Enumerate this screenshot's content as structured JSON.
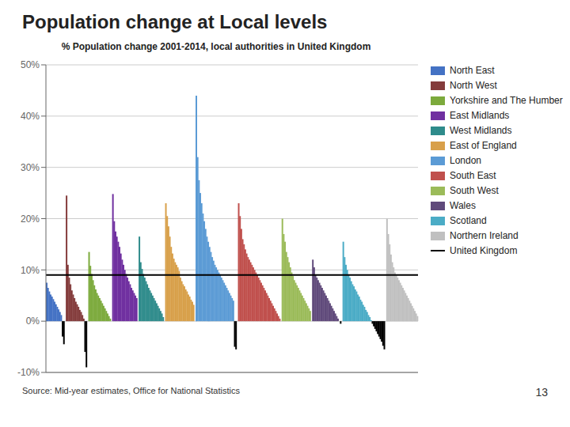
{
  "chart_data": {
    "type": "bar",
    "title": "Population change at Local levels",
    "subtitle": "% Population change 2001-2014,  local authorities in United Kingdom",
    "annotations": [
      "Source: Mid-year estimates, Office for National Statistics",
      "13"
    ],
    "ylim": [
      -10,
      50
    ],
    "yticks": [
      {
        "value": -10,
        "label": "-10%"
      },
      {
        "value": 0,
        "label": "0%"
      },
      {
        "value": 10,
        "label": "10%"
      },
      {
        "value": 20,
        "label": "20%"
      },
      {
        "value": 30,
        "label": "30%"
      },
      {
        "value": 40,
        "label": "40%"
      },
      {
        "value": 50,
        "label": "50%"
      }
    ],
    "grid": true,
    "legend": "right",
    "tick_labels": "y",
    "series": [
      {
        "name": "North East",
        "color": "#4472c4",
        "values": [
          7.5,
          6.5,
          5.8,
          5.2,
          4.8,
          4.3,
          3.8,
          3.3,
          2.8,
          2.3,
          1.8,
          1.2,
          -3.0,
          -4.5
        ],
        "colors": [
          "#4472c4",
          "#4472c4",
          "#4472c4",
          "#4472c4",
          "#4472c4",
          "#4472c4",
          "#4472c4",
          "#4472c4",
          "#4472c4",
          "#4472c4",
          "#4472c4",
          "#4472c4",
          "#000000",
          "#000000"
        ]
      },
      {
        "name": "North West",
        "color": "#843c3c",
        "values": [
          24.5,
          11.0,
          8.5,
          7.2,
          6.0,
          5.2,
          4.5,
          3.8,
          3.3,
          2.8,
          2.2,
          1.8,
          1.2,
          0.5,
          -6.0,
          -9.0
        ],
        "colors": [
          "#843c3c",
          "#843c3c",
          "#843c3c",
          "#843c3c",
          "#843c3c",
          "#843c3c",
          "#843c3c",
          "#843c3c",
          "#843c3c",
          "#843c3c",
          "#843c3c",
          "#843c3c",
          "#843c3c",
          "#843c3c",
          "#000000",
          "#000000"
        ]
      },
      {
        "name": "Yorkshire and The Humber",
        "color": "#7caa3c",
        "values": [
          13.5,
          10.8,
          9.2,
          8.0,
          7.0,
          6.2,
          5.5,
          5.0,
          4.5,
          4.0,
          3.5,
          3.0,
          2.5,
          2.0,
          1.5,
          1.0,
          0.5
        ],
        "colors": [
          "#7caa3c",
          "#7caa3c",
          "#7caa3c",
          "#7caa3c",
          "#7caa3c",
          "#7caa3c",
          "#7caa3c",
          "#7caa3c",
          "#7caa3c",
          "#7caa3c",
          "#7caa3c",
          "#7caa3c",
          "#7caa3c",
          "#7caa3c",
          "#7caa3c",
          "#7caa3c",
          "#7caa3c"
        ]
      },
      {
        "name": "East Midlands",
        "color": "#7030a0",
        "values": [
          24.8,
          19.5,
          17.5,
          16.5,
          15.5,
          14.5,
          13.2,
          12.0,
          11.0,
          10.0,
          9.2,
          8.5,
          7.8,
          7.2,
          6.5,
          6.0,
          5.5,
          5.0,
          4.5
        ],
        "colors": [
          "#7030a0",
          "#7030a0",
          "#7030a0",
          "#7030a0",
          "#7030a0",
          "#7030a0",
          "#7030a0",
          "#7030a0",
          "#7030a0",
          "#7030a0",
          "#7030a0",
          "#7030a0",
          "#7030a0",
          "#7030a0",
          "#7030a0",
          "#7030a0",
          "#7030a0",
          "#7030a0",
          "#7030a0"
        ]
      },
      {
        "name": "West Midlands",
        "color": "#2e8b8b",
        "values": [
          16.5,
          11.5,
          10.2,
          9.2,
          8.5,
          7.8,
          7.2,
          6.5,
          6.0,
          5.5,
          5.0,
          4.5,
          4.0,
          3.5,
          3.0,
          2.5,
          2.0,
          1.5,
          0.8
        ],
        "colors": [
          "#2e8b8b",
          "#2e8b8b",
          "#2e8b8b",
          "#2e8b8b",
          "#2e8b8b",
          "#2e8b8b",
          "#2e8b8b",
          "#2e8b8b",
          "#2e8b8b",
          "#2e8b8b",
          "#2e8b8b",
          "#2e8b8b",
          "#2e8b8b",
          "#2e8b8b",
          "#2e8b8b",
          "#2e8b8b",
          "#2e8b8b",
          "#2e8b8b",
          "#2e8b8b"
        ]
      },
      {
        "name": "East of England",
        "color": "#d8a04a",
        "values": [
          23.0,
          20.5,
          18.5,
          16.5,
          14.5,
          13.2,
          12.2,
          11.5,
          11.0,
          10.5,
          9.8,
          8.5,
          7.8,
          7.2,
          6.8,
          6.2,
          5.8,
          5.2,
          4.8,
          4.2,
          3.8,
          3.2
        ],
        "colors": [
          "#d8a04a",
          "#d8a04a",
          "#d8a04a",
          "#d8a04a",
          "#d8a04a",
          "#d8a04a",
          "#d8a04a",
          "#d8a04a",
          "#d8a04a",
          "#d8a04a",
          "#d8a04a",
          "#d8a04a",
          "#d8a04a",
          "#d8a04a",
          "#d8a04a",
          "#d8a04a",
          "#d8a04a",
          "#d8a04a",
          "#d8a04a",
          "#d8a04a",
          "#d8a04a",
          "#d8a04a"
        ]
      },
      {
        "name": "London",
        "color": "#5b9bd5",
        "values": [
          44.0,
          32.0,
          27.5,
          25.0,
          23.0,
          21.0,
          19.5,
          18.0,
          16.5,
          15.5,
          14.5,
          13.5,
          12.5,
          11.8,
          11.0,
          10.5,
          10.0,
          9.5,
          9.0,
          8.5,
          8.0,
          7.5,
          7.0,
          6.5,
          6.0,
          5.5,
          5.0,
          4.5,
          4.0,
          -5.0,
          -5.5
        ],
        "colors": [
          "#5b9bd5",
          "#5b9bd5",
          "#5b9bd5",
          "#5b9bd5",
          "#5b9bd5",
          "#5b9bd5",
          "#5b9bd5",
          "#5b9bd5",
          "#5b9bd5",
          "#5b9bd5",
          "#5b9bd5",
          "#5b9bd5",
          "#5b9bd5",
          "#5b9bd5",
          "#5b9bd5",
          "#5b9bd5",
          "#5b9bd5",
          "#5b9bd5",
          "#5b9bd5",
          "#5b9bd5",
          "#5b9bd5",
          "#5b9bd5",
          "#5b9bd5",
          "#5b9bd5",
          "#5b9bd5",
          "#5b9bd5",
          "#5b9bd5",
          "#5b9bd5",
          "#5b9bd5",
          "#000000",
          "#000000"
        ]
      },
      {
        "name": "South East",
        "color": "#c0504d",
        "values": [
          23.0,
          20.5,
          18.0,
          16.0,
          15.0,
          14.0,
          13.2,
          12.5,
          12.0,
          11.5,
          11.0,
          10.5,
          10.0,
          9.5,
          9.0,
          8.5,
          8.0,
          7.5,
          7.0,
          6.5,
          6.0,
          5.5,
          5.0,
          4.5,
          4.0,
          3.5,
          3.0,
          2.5,
          2.0,
          1.5,
          1.0,
          0.5
        ],
        "colors": [
          "#c0504d",
          "#c0504d",
          "#c0504d",
          "#c0504d",
          "#c0504d",
          "#c0504d",
          "#c0504d",
          "#c0504d",
          "#c0504d",
          "#c0504d",
          "#c0504d",
          "#c0504d",
          "#c0504d",
          "#c0504d",
          "#c0504d",
          "#c0504d",
          "#c0504d",
          "#c0504d",
          "#c0504d",
          "#c0504d",
          "#c0504d",
          "#c0504d",
          "#c0504d",
          "#c0504d",
          "#c0504d",
          "#c0504d",
          "#c0504d",
          "#c0504d",
          "#c0504d",
          "#c0504d",
          "#c0504d",
          "#c0504d"
        ]
      },
      {
        "name": "South West",
        "color": "#9bbb59",
        "values": [
          20.0,
          17.0,
          15.5,
          13.5,
          12.5,
          11.5,
          10.5,
          9.5,
          8.8,
          8.0,
          7.5,
          7.0,
          6.5,
          6.0,
          5.5,
          5.0,
          4.5,
          4.0,
          3.5,
          3.0,
          2.5,
          2.0
        ],
        "colors": [
          "#9bbb59",
          "#9bbb59",
          "#9bbb59",
          "#9bbb59",
          "#9bbb59",
          "#9bbb59",
          "#9bbb59",
          "#9bbb59",
          "#9bbb59",
          "#9bbb59",
          "#9bbb59",
          "#9bbb59",
          "#9bbb59",
          "#9bbb59",
          "#9bbb59",
          "#9bbb59",
          "#9bbb59",
          "#9bbb59",
          "#9bbb59",
          "#9bbb59",
          "#9bbb59",
          "#9bbb59"
        ]
      },
      {
        "name": "Wales",
        "color": "#604a7b",
        "values": [
          12.0,
          10.5,
          9.0,
          8.5,
          8.0,
          7.5,
          7.0,
          6.5,
          6.0,
          5.5,
          5.0,
          4.5,
          4.0,
          3.5,
          3.0,
          2.5,
          2.0,
          1.5,
          1.0,
          0.5,
          0.0,
          -0.5
        ],
        "colors": [
          "#604a7b",
          "#604a7b",
          "#604a7b",
          "#604a7b",
          "#604a7b",
          "#604a7b",
          "#604a7b",
          "#604a7b",
          "#604a7b",
          "#604a7b",
          "#604a7b",
          "#604a7b",
          "#604a7b",
          "#604a7b",
          "#604a7b",
          "#604a7b",
          "#604a7b",
          "#604a7b",
          "#604a7b",
          "#604a7b",
          "#604a7b",
          "#000000"
        ]
      },
      {
        "name": "Scotland",
        "color": "#4bacc6",
        "values": [
          15.5,
          12.5,
          11.0,
          10.0,
          9.0,
          8.5,
          7.8,
          7.2,
          6.8,
          6.2,
          5.8,
          5.2,
          4.8,
          4.2,
          3.8,
          3.2,
          2.8,
          2.2,
          1.8,
          1.2,
          0.8,
          0.2,
          -0.5,
          -1.0,
          -1.5,
          -2.0,
          -2.5,
          -3.0,
          -3.5,
          -4.0,
          -4.8,
          -5.5
        ],
        "colors": [
          "#4bacc6",
          "#4bacc6",
          "#4bacc6",
          "#4bacc6",
          "#4bacc6",
          "#4bacc6",
          "#4bacc6",
          "#4bacc6",
          "#4bacc6",
          "#4bacc6",
          "#4bacc6",
          "#4bacc6",
          "#4bacc6",
          "#4bacc6",
          "#4bacc6",
          "#4bacc6",
          "#4bacc6",
          "#4bacc6",
          "#4bacc6",
          "#4bacc6",
          "#4bacc6",
          "#4bacc6",
          "#000000",
          "#000000",
          "#000000",
          "#000000",
          "#000000",
          "#000000",
          "#000000",
          "#000000",
          "#000000",
          "#000000"
        ]
      },
      {
        "name": "Northern Ireland",
        "color": "#c0c0c0",
        "values": [
          20.0,
          17.0,
          15.0,
          13.0,
          11.5,
          10.5,
          9.5,
          9.0,
          8.5,
          8.0,
          7.5,
          7.0,
          6.5,
          6.0,
          5.5,
          5.0,
          4.5,
          4.0,
          3.5,
          3.0,
          2.5,
          2.0,
          1.5,
          1.0
        ],
        "colors": [
          "#c0c0c0",
          "#c0c0c0",
          "#c0c0c0",
          "#c0c0c0",
          "#c0c0c0",
          "#c0c0c0",
          "#c0c0c0",
          "#c0c0c0",
          "#c0c0c0",
          "#c0c0c0",
          "#c0c0c0",
          "#c0c0c0",
          "#c0c0c0",
          "#c0c0c0",
          "#c0c0c0",
          "#c0c0c0",
          "#c0c0c0",
          "#c0c0c0",
          "#c0c0c0",
          "#c0c0c0",
          "#c0c0c0",
          "#c0c0c0",
          "#c0c0c0",
          "#c0c0c0"
        ]
      },
      {
        "name": "United Kingdom",
        "type": "line",
        "color": "#000000",
        "values": [
          9.0
        ]
      }
    ]
  }
}
